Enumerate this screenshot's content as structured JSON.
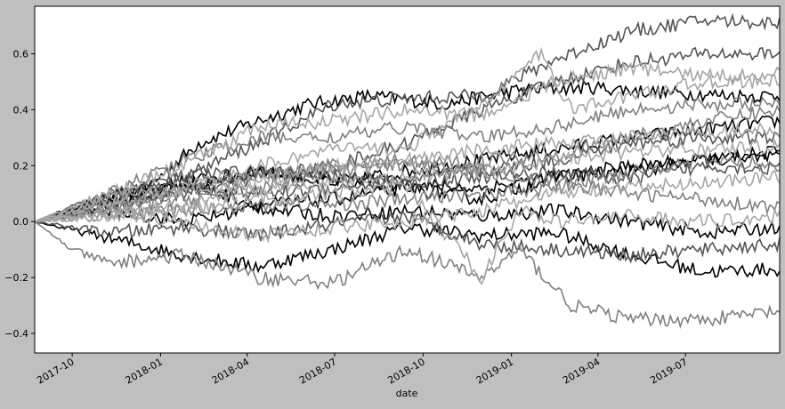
{
  "chart_data": {
    "type": "line",
    "title": "",
    "xlabel": "date",
    "ylabel": "",
    "x_start": "2017-08-23",
    "x_end": "2019-10-07",
    "xlim": [
      "2017-08-23",
      "2019-10-07"
    ],
    "ylim": [
      -0.47,
      0.77
    ],
    "x_ticks": [
      "2017-10",
      "2018-01",
      "2018-04",
      "2018-07",
      "2018-10",
      "2019-01",
      "2019-04",
      "2019-07"
    ],
    "y_ticks": [
      -0.4,
      -0.2,
      0.0,
      0.2,
      0.4,
      0.6
    ],
    "y_tick_labels": [
      "−0.4",
      "−0.2",
      "0.0",
      "0.2",
      "0.4",
      "0.6"
    ],
    "grid": false,
    "legend": "none",
    "colors": {
      "figure_bg": "#bfbfbf",
      "axes_bg": "#ffffff",
      "line_shades": [
        "#000000",
        "#555555",
        "#808080",
        "#a6a6a6"
      ]
    },
    "series": [
      {
        "color": "#000000",
        "values": [
          [
            0,
            0.0
          ],
          [
            0.15,
            0.12
          ],
          [
            0.22,
            0.28
          ],
          [
            0.3,
            0.36
          ],
          [
            0.37,
            0.42
          ],
          [
            0.45,
            0.45
          ],
          [
            0.55,
            0.42
          ],
          [
            0.65,
            0.47
          ],
          [
            0.75,
            0.48
          ],
          [
            0.85,
            0.46
          ],
          [
            0.95,
            0.45
          ],
          [
            1,
            0.45
          ]
        ]
      },
      {
        "color": "#000000",
        "values": [
          [
            0,
            0.0
          ],
          [
            0.1,
            0.09
          ],
          [
            0.2,
            0.14
          ],
          [
            0.3,
            0.18
          ],
          [
            0.4,
            0.14
          ],
          [
            0.5,
            0.18
          ],
          [
            0.6,
            0.22
          ],
          [
            0.7,
            0.26
          ],
          [
            0.8,
            0.3
          ],
          [
            0.9,
            0.33
          ],
          [
            1,
            0.36
          ]
        ]
      },
      {
        "color": "#000000",
        "values": [
          [
            0,
            0.0
          ],
          [
            0.1,
            -0.06
          ],
          [
            0.2,
            -0.12
          ],
          [
            0.3,
            -0.16
          ],
          [
            0.4,
            -0.1
          ],
          [
            0.5,
            -0.02
          ],
          [
            0.6,
            -0.05
          ],
          [
            0.7,
            -0.04
          ],
          [
            0.8,
            -0.12
          ],
          [
            0.9,
            -0.18
          ],
          [
            1,
            -0.17
          ]
        ]
      },
      {
        "color": "#000000",
        "values": [
          [
            0,
            0.0
          ],
          [
            0.1,
            0.08
          ],
          [
            0.2,
            0.14
          ],
          [
            0.3,
            0.06
          ],
          [
            0.4,
            0.08
          ],
          [
            0.5,
            0.12
          ],
          [
            0.6,
            0.08
          ],
          [
            0.7,
            0.16
          ],
          [
            0.8,
            0.18
          ],
          [
            0.9,
            0.22
          ],
          [
            1,
            0.25
          ]
        ]
      },
      {
        "color": "#000000",
        "values": [
          [
            0,
            0.0
          ],
          [
            0.1,
            0.04
          ],
          [
            0.2,
            0.0
          ],
          [
            0.3,
            0.05
          ],
          [
            0.4,
            0.02
          ],
          [
            0.5,
            0.04
          ],
          [
            0.6,
            0.02
          ],
          [
            0.7,
            0.04
          ],
          [
            0.8,
            0.0
          ],
          [
            0.9,
            -0.04
          ],
          [
            1,
            -0.02
          ]
        ]
      },
      {
        "color": "#000000",
        "values": [
          [
            0,
            0.0
          ],
          [
            0.1,
            0.06
          ],
          [
            0.2,
            0.12
          ],
          [
            0.3,
            0.18
          ],
          [
            0.4,
            0.15
          ],
          [
            0.5,
            0.13
          ],
          [
            0.6,
            0.12
          ],
          [
            0.7,
            0.16
          ],
          [
            0.8,
            0.2
          ],
          [
            0.9,
            0.22
          ],
          [
            1,
            0.23
          ]
        ]
      },
      {
        "color": "#555555",
        "values": [
          [
            0,
            0.0
          ],
          [
            0.1,
            0.08
          ],
          [
            0.2,
            0.16
          ],
          [
            0.3,
            0.28
          ],
          [
            0.4,
            0.42
          ],
          [
            0.5,
            0.44
          ],
          [
            0.6,
            0.45
          ],
          [
            0.7,
            0.58
          ],
          [
            0.8,
            0.68
          ],
          [
            0.9,
            0.72
          ],
          [
            1,
            0.71
          ]
        ]
      },
      {
        "color": "#555555",
        "values": [
          [
            0,
            0.0
          ],
          [
            0.1,
            0.05
          ],
          [
            0.2,
            0.1
          ],
          [
            0.3,
            0.16
          ],
          [
            0.4,
            0.2
          ],
          [
            0.5,
            0.28
          ],
          [
            0.6,
            0.4
          ],
          [
            0.7,
            0.5
          ],
          [
            0.8,
            0.57
          ],
          [
            0.9,
            0.6
          ],
          [
            1,
            0.6
          ]
        ]
      },
      {
        "color": "#555555",
        "values": [
          [
            0,
            0.0
          ],
          [
            0.1,
            0.06
          ],
          [
            0.2,
            0.12
          ],
          [
            0.3,
            0.1
          ],
          [
            0.4,
            0.12
          ],
          [
            0.5,
            0.15
          ],
          [
            0.6,
            0.18
          ],
          [
            0.7,
            0.22
          ],
          [
            0.8,
            0.28
          ],
          [
            0.9,
            0.3
          ],
          [
            1,
            0.3
          ]
        ]
      },
      {
        "color": "#555555",
        "values": [
          [
            0,
            0.0
          ],
          [
            0.1,
            -0.04
          ],
          [
            0.2,
            -0.02
          ],
          [
            0.3,
            -0.05
          ],
          [
            0.4,
            -0.01
          ],
          [
            0.5,
            0.02
          ],
          [
            0.6,
            -0.08
          ],
          [
            0.7,
            -0.1
          ],
          [
            0.8,
            -0.12
          ],
          [
            0.9,
            -0.1
          ],
          [
            1,
            -0.08
          ]
        ]
      },
      {
        "color": "#555555",
        "values": [
          [
            0,
            0.0
          ],
          [
            0.1,
            0.1
          ],
          [
            0.2,
            0.16
          ],
          [
            0.3,
            0.18
          ],
          [
            0.4,
            0.16
          ],
          [
            0.5,
            0.14
          ],
          [
            0.6,
            0.16
          ],
          [
            0.7,
            0.18
          ],
          [
            0.8,
            0.15
          ],
          [
            0.9,
            0.2
          ],
          [
            1,
            0.19
          ]
        ]
      },
      {
        "color": "#808080",
        "values": [
          [
            0,
            0.0
          ],
          [
            0.05,
            -0.1
          ],
          [
            0.1,
            -0.15
          ],
          [
            0.2,
            -0.12
          ],
          [
            0.3,
            -0.2
          ],
          [
            0.4,
            -0.22
          ],
          [
            0.5,
            -0.1
          ],
          [
            0.6,
            -0.2
          ],
          [
            0.65,
            -0.1
          ],
          [
            0.72,
            -0.3
          ],
          [
            0.8,
            -0.35
          ],
          [
            0.9,
            -0.35
          ],
          [
            1,
            -0.32
          ]
        ]
      },
      {
        "color": "#808080",
        "values": [
          [
            0,
            0.0
          ],
          [
            0.1,
            0.04
          ],
          [
            0.2,
            0.08
          ],
          [
            0.3,
            0.12
          ],
          [
            0.4,
            0.18
          ],
          [
            0.5,
            0.2
          ],
          [
            0.6,
            0.22
          ],
          [
            0.7,
            0.24
          ],
          [
            0.8,
            0.3
          ],
          [
            0.9,
            0.36
          ],
          [
            1,
            0.4
          ]
        ]
      },
      {
        "color": "#808080",
        "values": [
          [
            0,
            0.0
          ],
          [
            0.1,
            0.06
          ],
          [
            0.2,
            0.12
          ],
          [
            0.3,
            0.16
          ],
          [
            0.4,
            0.2
          ],
          [
            0.5,
            0.22
          ],
          [
            0.6,
            0.18
          ],
          [
            0.7,
            0.14
          ],
          [
            0.8,
            0.1
          ],
          [
            0.9,
            0.08
          ],
          [
            1,
            0.05
          ]
        ]
      },
      {
        "color": "#808080",
        "values": [
          [
            0,
            0.0
          ],
          [
            0.1,
            0.02
          ],
          [
            0.2,
            0.04
          ],
          [
            0.3,
            0.06
          ],
          [
            0.4,
            0.06
          ],
          [
            0.5,
            0.08
          ],
          [
            0.6,
            0.1
          ],
          [
            0.7,
            0.12
          ],
          [
            0.8,
            0.18
          ],
          [
            0.9,
            0.22
          ],
          [
            1,
            0.2
          ]
        ]
      },
      {
        "color": "#808080",
        "values": [
          [
            0,
            0.0
          ],
          [
            0.1,
            0.1
          ],
          [
            0.2,
            0.22
          ],
          [
            0.3,
            0.3
          ],
          [
            0.4,
            0.3
          ],
          [
            0.5,
            0.34
          ],
          [
            0.6,
            0.3
          ],
          [
            0.7,
            0.34
          ],
          [
            0.8,
            0.4
          ],
          [
            0.9,
            0.42
          ],
          [
            1,
            0.42
          ]
        ]
      },
      {
        "color": "#a6a6a6",
        "values": [
          [
            0,
            0.0
          ],
          [
            0.1,
            0.1
          ],
          [
            0.2,
            0.2
          ],
          [
            0.3,
            0.34
          ],
          [
            0.4,
            0.36
          ],
          [
            0.5,
            0.4
          ],
          [
            0.6,
            0.38
          ],
          [
            0.7,
            0.5
          ],
          [
            0.8,
            0.55
          ],
          [
            0.9,
            0.52
          ],
          [
            1,
            0.53
          ]
        ]
      },
      {
        "color": "#a6a6a6",
        "values": [
          [
            0,
            0.0
          ],
          [
            0.1,
            0.06
          ],
          [
            0.2,
            0.12
          ],
          [
            0.3,
            0.2
          ],
          [
            0.4,
            0.26
          ],
          [
            0.5,
            0.26
          ],
          [
            0.6,
            0.42
          ],
          [
            0.68,
            0.6
          ],
          [
            0.72,
            0.4
          ],
          [
            0.8,
            0.45
          ],
          [
            0.9,
            0.5
          ],
          [
            1,
            0.5
          ]
        ]
      },
      {
        "color": "#a6a6a6",
        "values": [
          [
            0,
            0.0
          ],
          [
            0.1,
            0.02
          ],
          [
            0.2,
            0.04
          ],
          [
            0.3,
            0.08
          ],
          [
            0.4,
            0.1
          ],
          [
            0.5,
            0.12
          ],
          [
            0.6,
            -0.2
          ],
          [
            0.65,
            0.04
          ],
          [
            0.7,
            0.0
          ],
          [
            0.8,
            0.02
          ],
          [
            0.9,
            0.0
          ],
          [
            1,
            0.02
          ]
        ]
      },
      {
        "color": "#a6a6a6",
        "values": [
          [
            0,
            0.0
          ],
          [
            0.1,
            0.08
          ],
          [
            0.2,
            0.12
          ],
          [
            0.3,
            0.14
          ],
          [
            0.4,
            0.2
          ],
          [
            0.5,
            0.22
          ],
          [
            0.6,
            0.26
          ],
          [
            0.7,
            0.28
          ],
          [
            0.8,
            0.3
          ],
          [
            0.9,
            0.32
          ],
          [
            1,
            0.33
          ]
        ]
      },
      {
        "color": "#a6a6a6",
        "values": [
          [
            0,
            0.0
          ],
          [
            0.1,
            0.04
          ],
          [
            0.2,
            0.0
          ],
          [
            0.3,
            -0.05
          ],
          [
            0.4,
            -0.02
          ],
          [
            0.5,
            0.0
          ],
          [
            0.6,
            0.04
          ],
          [
            0.7,
            0.1
          ],
          [
            0.8,
            0.12
          ],
          [
            0.9,
            0.14
          ],
          [
            1,
            0.16
          ]
        ]
      },
      {
        "color": "#a6a6a6",
        "values": [
          [
            0,
            0.0
          ],
          [
            0.1,
            0.02
          ],
          [
            0.2,
            0.06
          ],
          [
            0.3,
            0.12
          ],
          [
            0.4,
            0.14
          ],
          [
            0.5,
            0.16
          ],
          [
            0.6,
            0.18
          ],
          [
            0.7,
            0.22
          ],
          [
            0.8,
            0.25
          ],
          [
            0.9,
            0.26
          ],
          [
            1,
            0.27
          ]
        ]
      }
    ]
  }
}
